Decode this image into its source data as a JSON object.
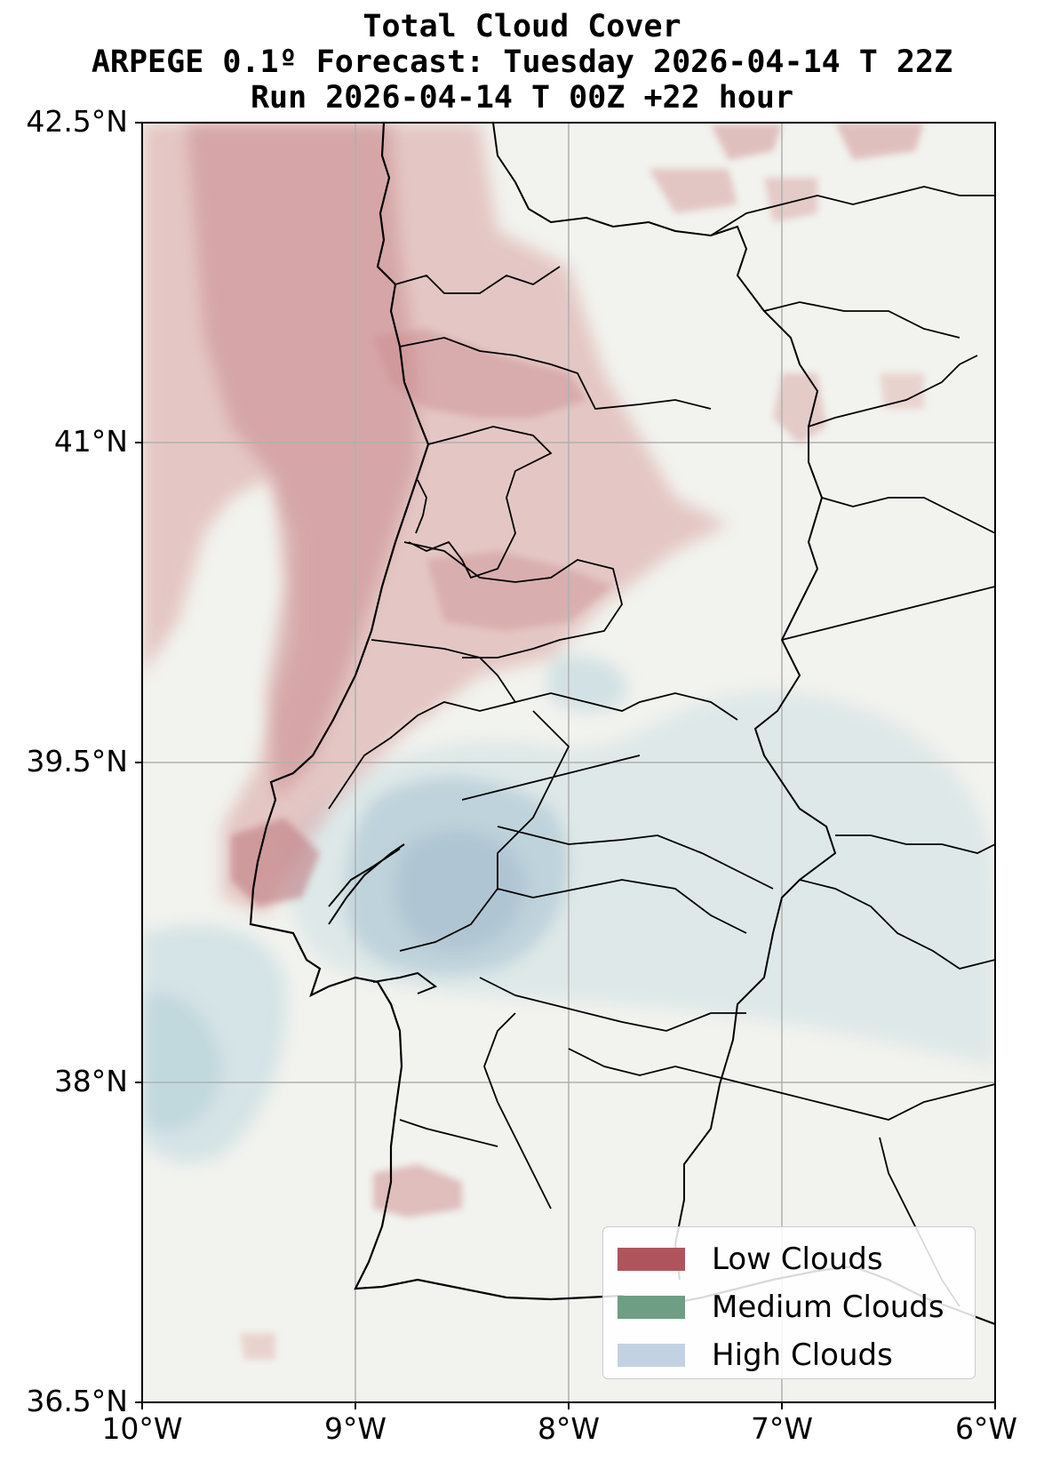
{
  "title": {
    "line1": "Total Cloud Cover",
    "line2": "ARPEGE 0.1º Forecast: Tuesday 2026-04-14 T 22Z",
    "line3": "Run 2026-04-14 T 00Z +22 hour"
  },
  "axes": {
    "y_ticks": [
      "42.5°N",
      "41°N",
      "39.5°N",
      "38°N",
      "36.5°N"
    ],
    "x_ticks": [
      "10°W",
      "9°W",
      "8°W",
      "7°W",
      "6°W"
    ],
    "lat_range": [
      36.5,
      42.5
    ],
    "lon_range": [
      -10,
      -6
    ],
    "grid": true
  },
  "legend": {
    "placement": "lower-right",
    "items": [
      {
        "label": "Low Clouds",
        "color": "#b0545c"
      },
      {
        "label": "Medium Clouds",
        "color": "#6e9e84"
      },
      {
        "label": "High Clouds",
        "color": "#c3d2e2"
      }
    ]
  },
  "colors": {
    "land_background": "#f2f3ee",
    "low_cloud": "#b0545c",
    "high_cloud": "#b8d2dc",
    "borders": "#000000",
    "grid": "#b0b0b0"
  }
}
